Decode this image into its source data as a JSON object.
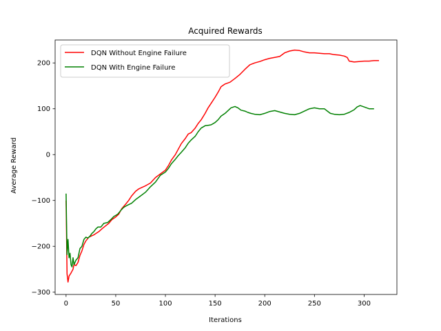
{
  "chart_data": {
    "type": "line",
    "title": "Acquired Rewards",
    "xlabel": "Iterations",
    "ylabel": "Average Reward",
    "xlim": [
      -11,
      333
    ],
    "ylim": [
      -305,
      250
    ],
    "xticks": [
      0,
      50,
      100,
      150,
      200,
      250,
      300
    ],
    "yticks": [
      -300,
      -200,
      -100,
      0,
      100,
      200
    ],
    "grid": false,
    "legend_position": "top-left",
    "series": [
      {
        "name": "DQN Without Engine Failure",
        "color": "#ff0000",
        "points": [
          [
            0,
            -100
          ],
          [
            1,
            -260
          ],
          [
            2,
            -278
          ],
          [
            3,
            -265
          ],
          [
            5,
            -258
          ],
          [
            7,
            -250
          ],
          [
            8,
            -240
          ],
          [
            10,
            -242
          ],
          [
            12,
            -235
          ],
          [
            14,
            -220
          ],
          [
            16,
            -210
          ],
          [
            18,
            -196
          ],
          [
            20,
            -188
          ],
          [
            23,
            -180
          ],
          [
            25,
            -178
          ],
          [
            28,
            -175
          ],
          [
            30,
            -172
          ],
          [
            33,
            -168
          ],
          [
            36,
            -162
          ],
          [
            40,
            -155
          ],
          [
            43,
            -150
          ],
          [
            46,
            -142
          ],
          [
            50,
            -136
          ],
          [
            53,
            -130
          ],
          [
            56,
            -118
          ],
          [
            60,
            -108
          ],
          [
            63,
            -100
          ],
          [
            66,
            -90
          ],
          [
            70,
            -80
          ],
          [
            73,
            -75
          ],
          [
            76,
            -72
          ],
          [
            80,
            -68
          ],
          [
            85,
            -62
          ],
          [
            90,
            -50
          ],
          [
            95,
            -42
          ],
          [
            100,
            -34
          ],
          [
            103,
            -24
          ],
          [
            106,
            -12
          ],
          [
            110,
            0
          ],
          [
            113,
            12
          ],
          [
            116,
            24
          ],
          [
            120,
            35
          ],
          [
            123,
            45
          ],
          [
            126,
            48
          ],
          [
            130,
            58
          ],
          [
            133,
            68
          ],
          [
            136,
            76
          ],
          [
            140,
            90
          ],
          [
            143,
            102
          ],
          [
            146,
            112
          ],
          [
            150,
            125
          ],
          [
            153,
            136
          ],
          [
            156,
            148
          ],
          [
            160,
            154
          ],
          [
            165,
            158
          ],
          [
            170,
            166
          ],
          [
            175,
            175
          ],
          [
            180,
            186
          ],
          [
            185,
            196
          ],
          [
            190,
            200
          ],
          [
            195,
            203
          ],
          [
            200,
            207
          ],
          [
            205,
            210
          ],
          [
            210,
            212
          ],
          [
            215,
            214
          ],
          [
            220,
            222
          ],
          [
            225,
            226
          ],
          [
            230,
            228
          ],
          [
            235,
            227
          ],
          [
            240,
            224
          ],
          [
            245,
            222
          ],
          [
            250,
            222
          ],
          [
            255,
            221
          ],
          [
            260,
            220
          ],
          [
            265,
            220
          ],
          [
            270,
            218
          ],
          [
            275,
            217
          ],
          [
            280,
            215
          ],
          [
            283,
            212
          ],
          [
            285,
            204
          ],
          [
            290,
            202
          ],
          [
            295,
            203
          ],
          [
            300,
            204
          ],
          [
            305,
            204
          ],
          [
            310,
            205
          ],
          [
            315,
            205
          ]
        ]
      },
      {
        "name": "DQN With Engine Failure",
        "color": "#008000",
        "points": [
          [
            0,
            -85
          ],
          [
            1,
            -218
          ],
          [
            2,
            -185
          ],
          [
            3,
            -225
          ],
          [
            4,
            -215
          ],
          [
            5,
            -240
          ],
          [
            6,
            -245
          ],
          [
            7,
            -225
          ],
          [
            8,
            -240
          ],
          [
            10,
            -230
          ],
          [
            12,
            -225
          ],
          [
            14,
            -205
          ],
          [
            16,
            -200
          ],
          [
            18,
            -185
          ],
          [
            20,
            -180
          ],
          [
            22,
            -182
          ],
          [
            24,
            -178
          ],
          [
            26,
            -172
          ],
          [
            28,
            -168
          ],
          [
            30,
            -162
          ],
          [
            32,
            -158
          ],
          [
            35,
            -158
          ],
          [
            38,
            -150
          ],
          [
            42,
            -148
          ],
          [
            45,
            -142
          ],
          [
            48,
            -135
          ],
          [
            52,
            -130
          ],
          [
            55,
            -122
          ],
          [
            58,
            -115
          ],
          [
            62,
            -110
          ],
          [
            66,
            -106
          ],
          [
            70,
            -98
          ],
          [
            75,
            -90
          ],
          [
            80,
            -82
          ],
          [
            85,
            -70
          ],
          [
            90,
            -60
          ],
          [
            95,
            -45
          ],
          [
            100,
            -38
          ],
          [
            103,
            -30
          ],
          [
            106,
            -20
          ],
          [
            110,
            -10
          ],
          [
            113,
            -2
          ],
          [
            116,
            5
          ],
          [
            120,
            15
          ],
          [
            123,
            25
          ],
          [
            126,
            32
          ],
          [
            130,
            40
          ],
          [
            133,
            50
          ],
          [
            136,
            58
          ],
          [
            140,
            63
          ],
          [
            143,
            64
          ],
          [
            146,
            65
          ],
          [
            150,
            70
          ],
          [
            153,
            76
          ],
          [
            156,
            84
          ],
          [
            160,
            90
          ],
          [
            163,
            96
          ],
          [
            166,
            102
          ],
          [
            170,
            105
          ],
          [
            173,
            102
          ],
          [
            176,
            97
          ],
          [
            180,
            95
          ],
          [
            183,
            92
          ],
          [
            186,
            90
          ],
          [
            190,
            88
          ],
          [
            195,
            87
          ],
          [
            200,
            90
          ],
          [
            205,
            94
          ],
          [
            210,
            96
          ],
          [
            215,
            93
          ],
          [
            220,
            90
          ],
          [
            225,
            88
          ],
          [
            230,
            87
          ],
          [
            235,
            90
          ],
          [
            240,
            95
          ],
          [
            245,
            100
          ],
          [
            250,
            102
          ],
          [
            255,
            100
          ],
          [
            260,
            100
          ],
          [
            263,
            95
          ],
          [
            266,
            90
          ],
          [
            270,
            88
          ],
          [
            275,
            87
          ],
          [
            280,
            88
          ],
          [
            285,
            92
          ],
          [
            290,
            98
          ],
          [
            293,
            104
          ],
          [
            296,
            107
          ],
          [
            300,
            104
          ],
          [
            305,
            100
          ],
          [
            310,
            100
          ]
        ]
      }
    ]
  }
}
